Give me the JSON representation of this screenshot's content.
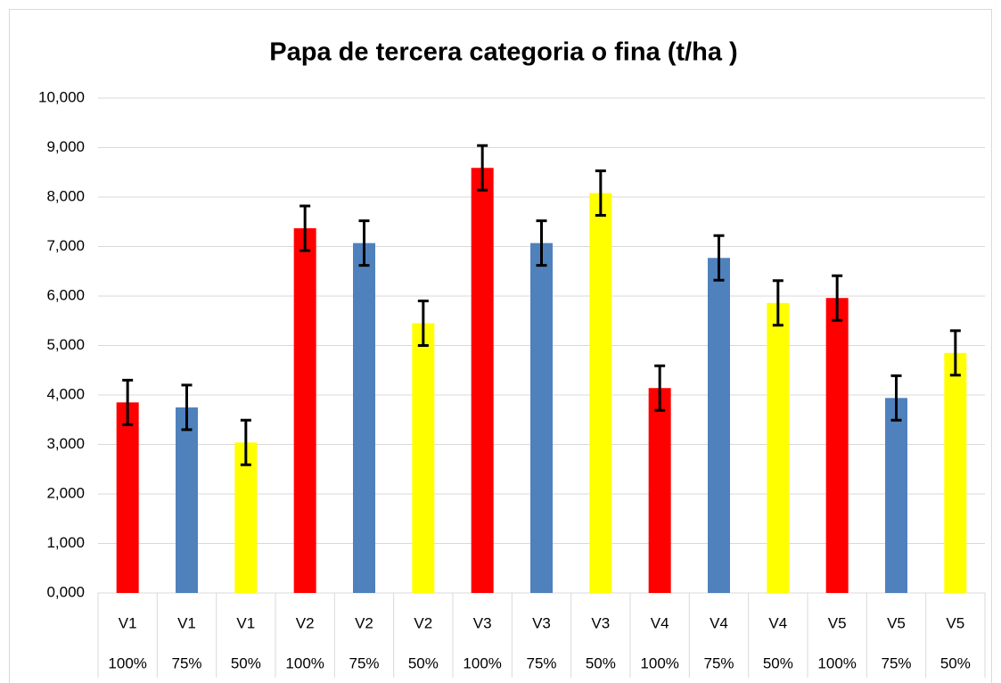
{
  "chart_data": {
    "type": "bar",
    "title": "Papa de tercera categoria o fina (t/ha )",
    "categories": [
      "V1",
      "V1",
      "V1",
      "V2",
      "V2",
      "V2",
      "V3",
      "V3",
      "V3",
      "V4",
      "V4",
      "V4",
      "V5",
      "V5",
      "V5"
    ],
    "subcategories": [
      "100%",
      "75%",
      "50%",
      "100%",
      "75%",
      "50%",
      "100%",
      "75%",
      "50%",
      "100%",
      "75%",
      "50%",
      "100%",
      "75%",
      "50%"
    ],
    "values": [
      3.85,
      3.75,
      3.04,
      7.37,
      7.07,
      5.45,
      8.59,
      7.07,
      8.08,
      4.14,
      6.77,
      5.86,
      5.96,
      3.94,
      4.85
    ],
    "errors": [
      0.45,
      0.45,
      0.45,
      0.45,
      0.45,
      0.45,
      0.45,
      0.45,
      0.45,
      0.45,
      0.45,
      0.45,
      0.45,
      0.45,
      0.45
    ],
    "colors": [
      "#ff0000",
      "#4f81bd",
      "#ffff00",
      "#ff0000",
      "#4f81bd",
      "#ffff00",
      "#ff0000",
      "#4f81bd",
      "#ffff00",
      "#ff0000",
      "#4f81bd",
      "#ffff00",
      "#ff0000",
      "#4f81bd",
      "#ffff00"
    ],
    "ylim": [
      0,
      10
    ],
    "yticks": [
      {
        "value": 0,
        "label": "0,000"
      },
      {
        "value": 1,
        "label": "1,000"
      },
      {
        "value": 2,
        "label": "2,000"
      },
      {
        "value": 3,
        "label": "3,000"
      },
      {
        "value": 4,
        "label": "4,000"
      },
      {
        "value": 5,
        "label": "5,000"
      },
      {
        "value": 6,
        "label": "6,000"
      },
      {
        "value": 7,
        "label": "7,000"
      },
      {
        "value": 8,
        "label": "8,000"
      },
      {
        "value": 9,
        "label": "9,000"
      },
      {
        "value": 10,
        "label": "10,000"
      }
    ],
    "grid": true
  }
}
